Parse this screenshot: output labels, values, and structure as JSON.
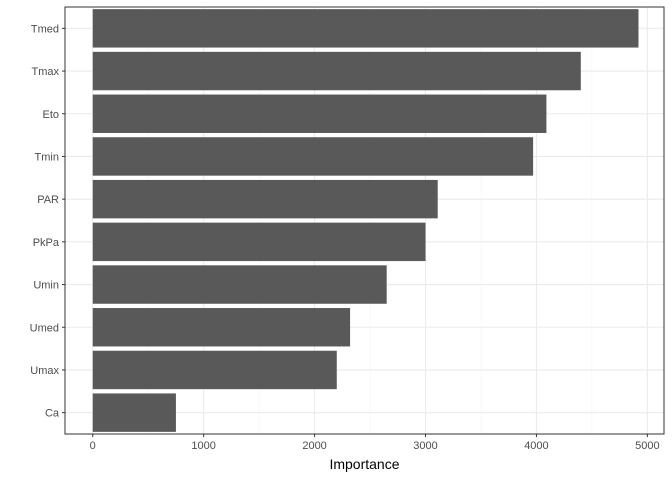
{
  "chart_data": {
    "type": "bar",
    "orientation": "horizontal",
    "categories": [
      "Tmed",
      "Tmax",
      "Eto",
      "Tmin",
      "PAR",
      "PkPa",
      "Umin",
      "Umed",
      "Umax",
      "Ca"
    ],
    "values": [
      4920,
      4400,
      4090,
      3970,
      3110,
      3000,
      2650,
      2320,
      2200,
      750
    ],
    "xlabel": "Importance",
    "ylabel": "",
    "xlim": [
      -250,
      5150
    ],
    "xticks": [
      0,
      1000,
      2000,
      3000,
      4000,
      5000
    ],
    "xtick_labels": [
      "0",
      "1000",
      "2000",
      "3000",
      "4000",
      "5000"
    ],
    "grid": true,
    "bar_color": "#595959",
    "grid_major_color": "#ebebeb",
    "grid_minor_color": "#f5f5f5",
    "panel_border_color": "#333333"
  }
}
